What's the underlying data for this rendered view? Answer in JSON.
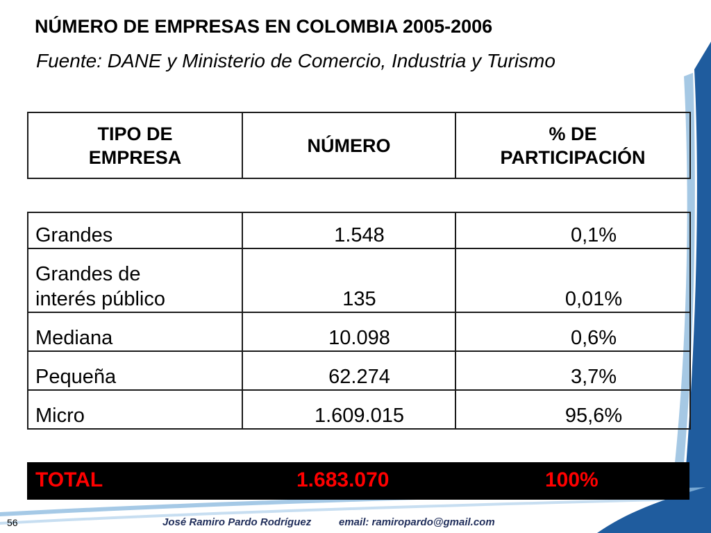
{
  "header": {
    "title": "NÚMERO DE EMPRESAS EN COLOMBIA 2005-2006",
    "subtitle": "Fuente: DANE y Ministerio de Comercio, Industria y Turismo"
  },
  "table": {
    "columns": [
      {
        "line1": "TIPO DE",
        "line2": "EMPRESA"
      },
      {
        "line1": "NÚMERO",
        "line2": ""
      },
      {
        "line1": "% DE",
        "line2": "PARTICIPACIÓN"
      }
    ],
    "rows": [
      {
        "label_line1": "Grandes",
        "label_line2": "",
        "numero": "1.548",
        "participacion": "0,1%"
      },
      {
        "label_line1": "Grandes de",
        "label_line2": "interés público",
        "numero": "135",
        "participacion": "0,01%"
      },
      {
        "label_line1": "Mediana",
        "label_line2": "",
        "numero": "10.098",
        "participacion": "0,6%"
      },
      {
        "label_line1": "Pequeña",
        "label_line2": "",
        "numero": "62.274",
        "participacion": "3,7%"
      },
      {
        "label_line1": "Micro",
        "label_line2": "",
        "numero": "1.609.015",
        "participacion": "95,6%"
      }
    ],
    "total": {
      "label": "TOTAL",
      "numero": "1.683.070",
      "participacion": "100%"
    }
  },
  "footer": {
    "page_number": "56",
    "author": "José Ramiro Pardo Rodríguez",
    "email": "email: ramiropardo@gmail.com"
  },
  "colors": {
    "total_text": "#ff0000",
    "total_background": "#000000",
    "decor_blue": "#1f5c9e"
  }
}
